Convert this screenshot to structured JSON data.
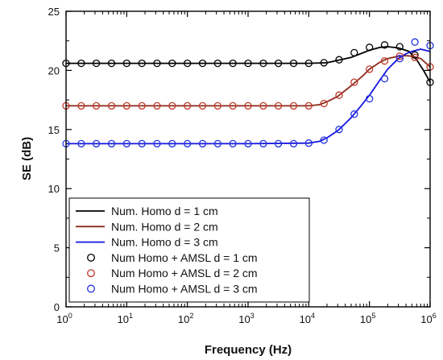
{
  "chart_data": {
    "type": "line",
    "xscale": "log",
    "xlabel": "Frequency (Hz)",
    "ylabel": "SE (dB)",
    "xlim": [
      1,
      1000000
    ],
    "ylim": [
      0,
      25
    ],
    "x_ticks": [
      {
        "value": 1,
        "base": "10",
        "exp": "0"
      },
      {
        "value": 10,
        "base": "10",
        "exp": "1"
      },
      {
        "value": 100,
        "base": "10",
        "exp": "2"
      },
      {
        "value": 1000,
        "base": "10",
        "exp": "3"
      },
      {
        "value": 10000,
        "base": "10",
        "exp": "4"
      },
      {
        "value": 100000,
        "base": "10",
        "exp": "5"
      },
      {
        "value": 1000000,
        "base": "10",
        "exp": "6"
      }
    ],
    "y_ticks": [
      "0",
      "5",
      "10",
      "15",
      "20",
      "25"
    ],
    "grid": false,
    "legend_position": "bottom-left",
    "series": [
      {
        "name": "Num. Homo d = 1 cm",
        "style": "line",
        "color": "#000000",
        "x": [
          1,
          10,
          100,
          1000,
          10000,
          20000,
          50000,
          100000,
          150000,
          200000,
          300000,
          450000,
          600000,
          800000,
          1000000
        ],
        "y": [
          20.6,
          20.6,
          20.6,
          20.6,
          20.6,
          20.65,
          21.1,
          21.7,
          21.95,
          22.0,
          21.9,
          21.6,
          20.9,
          19.9,
          19.0
        ]
      },
      {
        "name": "Num. Homo d = 2 cm",
        "style": "line",
        "color": "#8b2a1a",
        "x": [
          1,
          10,
          100,
          1000,
          10000,
          15000,
          20000,
          30000,
          50000,
          80000,
          100000,
          150000,
          200000,
          300000,
          400000,
          500000,
          700000,
          1000000
        ],
        "y": [
          17.0,
          17.0,
          17.0,
          17.0,
          17.0,
          17.1,
          17.35,
          17.8,
          18.7,
          19.6,
          20.1,
          20.7,
          21.0,
          21.2,
          21.25,
          21.2,
          21.0,
          20.3
        ]
      },
      {
        "name": "Num. Homo d = 3 cm",
        "style": "line",
        "color": "#1515e0",
        "x": [
          1,
          10,
          100,
          1000,
          10000,
          15000,
          20000,
          30000,
          50000,
          70000,
          100000,
          150000,
          200000,
          300000,
          400000,
          500000,
          700000,
          1000000
        ],
        "y": [
          13.8,
          13.8,
          13.8,
          13.8,
          13.85,
          14.0,
          14.3,
          14.9,
          16.0,
          16.9,
          17.9,
          19.2,
          20.1,
          21.0,
          21.4,
          21.6,
          21.8,
          21.6
        ]
      },
      {
        "name": "Num Homo + AMSL d = 1 cm",
        "style": "markers",
        "color": "#000000",
        "x": [
          1,
          1.78,
          3.16,
          5.62,
          10,
          17.8,
          31.6,
          56.2,
          100,
          178,
          316,
          562,
          1000,
          1780,
          3160,
          5620,
          10000,
          17800,
          31600,
          56200,
          100000,
          178000,
          316000,
          562000,
          1000000
        ],
        "y": [
          20.6,
          20.6,
          20.6,
          20.6,
          20.6,
          20.6,
          20.6,
          20.6,
          20.6,
          20.6,
          20.6,
          20.6,
          20.6,
          20.6,
          20.6,
          20.6,
          20.6,
          20.65,
          20.9,
          21.5,
          21.95,
          22.15,
          22.0,
          21.3,
          19.0
        ]
      },
      {
        "name": "Num Homo + AMSL d = 2 cm",
        "style": "markers",
        "color": "#c0392b",
        "x": [
          1,
          1.78,
          3.16,
          5.62,
          10,
          17.8,
          31.6,
          56.2,
          100,
          178,
          316,
          562,
          1000,
          1780,
          3160,
          5620,
          10000,
          17800,
          31600,
          56200,
          100000,
          178000,
          316000,
          562000,
          1000000
        ],
        "y": [
          17.0,
          17.0,
          17.0,
          17.0,
          17.0,
          17.0,
          17.0,
          17.0,
          17.0,
          17.0,
          17.0,
          17.0,
          17.0,
          17.0,
          17.0,
          17.0,
          17.0,
          17.2,
          17.9,
          19.0,
          20.1,
          20.8,
          21.2,
          21.1,
          20.3
        ]
      },
      {
        "name": "Num Homo + AMSL d = 3 cm",
        "style": "markers",
        "color": "#2233dd",
        "x": [
          1,
          1.78,
          3.16,
          5.62,
          10,
          17.8,
          31.6,
          56.2,
          100,
          178,
          316,
          562,
          1000,
          1780,
          3160,
          5620,
          10000,
          17800,
          31600,
          56200,
          100000,
          178000,
          316000,
          562000,
          1000000
        ],
        "y": [
          13.8,
          13.8,
          13.8,
          13.8,
          13.8,
          13.8,
          13.8,
          13.8,
          13.8,
          13.8,
          13.8,
          13.8,
          13.8,
          13.8,
          13.8,
          13.8,
          13.85,
          14.1,
          15.0,
          16.3,
          17.6,
          19.3,
          21.0,
          22.4,
          22.1
        ]
      }
    ]
  }
}
